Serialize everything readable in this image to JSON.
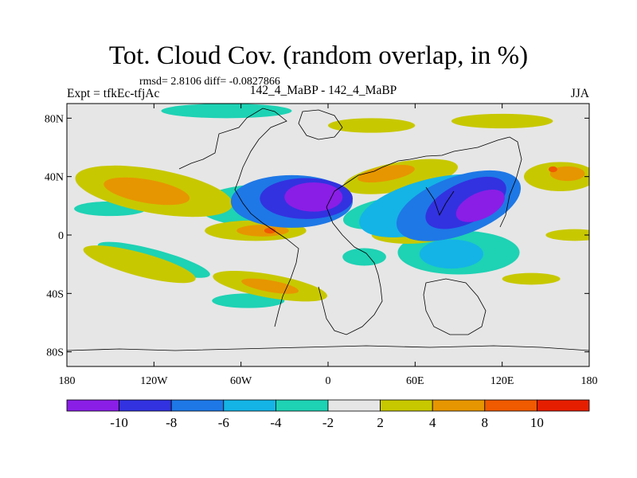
{
  "figure": {
    "title": "Tot. Cloud Cov. (random overlap, in %)",
    "stats_text": "rmsd= 2.8106 diff= -0.0827866",
    "left_label": "Expt = tfkEc-tfjAc",
    "center_label": "142_4_MaBP - 142_4_MaBP",
    "right_label": "JJA"
  },
  "map": {
    "projection": "cylindrical-equidistant",
    "lon_range": [
      -180,
      180
    ],
    "lat_range": [
      -90,
      90
    ],
    "background_color": "#e6e6e6",
    "lat_ticks": [
      {
        "value": 80,
        "label": "80N"
      },
      {
        "value": 40,
        "label": "40N"
      },
      {
        "value": 0,
        "label": "0"
      },
      {
        "value": -40,
        "label": "40S"
      },
      {
        "value": -80,
        "label": "80S"
      }
    ],
    "lon_ticks": [
      {
        "value": -180,
        "label": "180"
      },
      {
        "value": -120,
        "label": "120W"
      },
      {
        "value": -60,
        "label": "60W"
      },
      {
        "value": 0,
        "label": "0"
      },
      {
        "value": 60,
        "label": "60E"
      },
      {
        "value": 120,
        "label": "120E"
      },
      {
        "value": 180,
        "label": "180"
      }
    ]
  },
  "colorbar": {
    "colors": [
      "#8a1ee6",
      "#3232e0",
      "#1e78e6",
      "#14b4e6",
      "#1ed2b4",
      "#e6e6e6",
      "#c8c800",
      "#e69600",
      "#f05a00",
      "#e61e00"
    ],
    "labels": [
      "-10",
      "-8",
      "-6",
      "-4",
      "-2",
      "2",
      "4",
      "8",
      "10"
    ]
  },
  "anomalies": [
    {
      "lon": 105,
      "lat": 20,
      "rx": 18,
      "ry": 9,
      "rot": -25,
      "level": 0
    },
    {
      "lon": 95,
      "lat": 22,
      "rx": 30,
      "ry": 14,
      "rot": -25,
      "level": 1
    },
    {
      "lon": 90,
      "lat": 20,
      "rx": 45,
      "ry": 20,
      "rot": -20,
      "level": 2
    },
    {
      "lon": 70,
      "lat": 20,
      "rx": 50,
      "ry": 18,
      "rot": -15,
      "level": 3
    },
    {
      "lon": 40,
      "lat": 15,
      "rx": 30,
      "ry": 10,
      "rot": -10,
      "level": 4
    },
    {
      "lon": -10,
      "lat": 26,
      "rx": 20,
      "ry": 10,
      "rot": 0,
      "level": 0
    },
    {
      "lon": -15,
      "lat": 25,
      "rx": 32,
      "ry": 14,
      "rot": 0,
      "level": 1
    },
    {
      "lon": -25,
      "lat": 23,
      "rx": 42,
      "ry": 18,
      "rot": 0,
      "level": 2
    },
    {
      "lon": -40,
      "lat": 20,
      "rx": 50,
      "ry": 15,
      "rot": 0,
      "level": 4
    },
    {
      "lon": -150,
      "lat": 18,
      "rx": 25,
      "ry": 5,
      "rot": 0,
      "level": 4
    },
    {
      "lon": 25,
      "lat": -15,
      "rx": 15,
      "ry": 6,
      "rot": 0,
      "level": 4
    },
    {
      "lon": 85,
      "lat": -13,
      "rx": 22,
      "ry": 10,
      "rot": 0,
      "level": 3
    },
    {
      "lon": 90,
      "lat": -12,
      "rx": 42,
      "ry": 15,
      "rot": 0,
      "level": 4
    },
    {
      "lon": -120,
      "lat": -17,
      "rx": 40,
      "ry": 7,
      "rot": 15,
      "level": 4
    },
    {
      "lon": -70,
      "lat": 85,
      "rx": 45,
      "ry": 5,
      "rot": 0,
      "level": 4
    },
    {
      "lon": -55,
      "lat": -45,
      "rx": 25,
      "ry": 5,
      "rot": 0,
      "level": 4
    },
    {
      "lon": -120,
      "lat": 30,
      "rx": 55,
      "ry": 15,
      "rot": 10,
      "level": 6
    },
    {
      "lon": -125,
      "lat": 30,
      "rx": 30,
      "ry": 8,
      "rot": 10,
      "level": 7
    },
    {
      "lon": -50,
      "lat": 3,
      "rx": 35,
      "ry": 7,
      "rot": 0,
      "level": 6
    },
    {
      "lon": -45,
      "lat": 3,
      "rx": 18,
      "ry": 4,
      "rot": 0,
      "level": 7
    },
    {
      "lon": -40,
      "lat": 3,
      "rx": 4,
      "ry": 2,
      "rot": 0,
      "level": 8
    },
    {
      "lon": -130,
      "lat": -20,
      "rx": 40,
      "ry": 8,
      "rot": 15,
      "level": 6
    },
    {
      "lon": -40,
      "lat": -35,
      "rx": 40,
      "ry": 8,
      "rot": 10,
      "level": 6
    },
    {
      "lon": -40,
      "lat": -35,
      "rx": 20,
      "ry": 4,
      "rot": 10,
      "level": 7
    },
    {
      "lon": 50,
      "lat": 40,
      "rx": 40,
      "ry": 10,
      "rot": -10,
      "level": 6
    },
    {
      "lon": 40,
      "lat": 42,
      "rx": 20,
      "ry": 5,
      "rot": -10,
      "level": 7
    },
    {
      "lon": 55,
      "lat": 0,
      "rx": 25,
      "ry": 6,
      "rot": 0,
      "level": 6
    },
    {
      "lon": 160,
      "lat": 40,
      "rx": 25,
      "ry": 10,
      "rot": 0,
      "level": 6
    },
    {
      "lon": 165,
      "lat": 42,
      "rx": 12,
      "ry": 5,
      "rot": 0,
      "level": 7
    },
    {
      "lon": 155,
      "lat": 45,
      "rx": 3,
      "ry": 2,
      "rot": 0,
      "level": 8
    },
    {
      "lon": 30,
      "lat": 75,
      "rx": 30,
      "ry": 5,
      "rot": 0,
      "level": 6
    },
    {
      "lon": 120,
      "lat": 78,
      "rx": 35,
      "ry": 5,
      "rot": 0,
      "level": 6
    },
    {
      "lon": 170,
      "lat": 0,
      "rx": 20,
      "ry": 4,
      "rot": 0,
      "level": 6
    },
    {
      "lon": 140,
      "lat": -30,
      "rx": 20,
      "ry": 4,
      "rot": 0,
      "level": 6
    }
  ]
}
